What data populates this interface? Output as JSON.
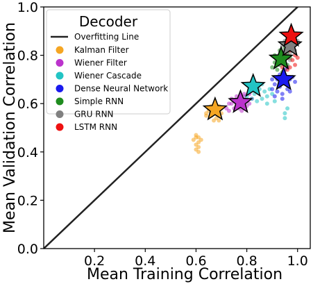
{
  "chart_data": {
    "type": "scatter",
    "xlabel": "Mean Training Correlation",
    "ylabel": "Mean Validation Correlation",
    "xlim": [
      0.0,
      1.05
    ],
    "ylim": [
      0.0,
      1.0
    ],
    "x_ticks": [
      "0.2",
      "0.4",
      "0.6",
      "0.8",
      "1.0"
    ],
    "x_tick_values": [
      0.2,
      0.4,
      0.6,
      0.8,
      1.0
    ],
    "y_ticks": [
      "0.0",
      "0.2",
      "0.4",
      "0.6",
      "0.8",
      "1.0"
    ],
    "y_tick_values": [
      0.0,
      0.2,
      0.4,
      0.6,
      0.8,
      1.0
    ],
    "grid": false,
    "legend": {
      "title": "Decoder",
      "placement": "top-left"
    },
    "reference_line": {
      "name": "Overfitting Line",
      "color": "#222222",
      "x": [
        0.0,
        1.05
      ],
      "y": [
        0.0,
        1.05
      ]
    },
    "series": [
      {
        "name": "Kalman Filter",
        "color": "#f5a623",
        "mean": [
          0.675,
          0.575
        ],
        "points": [
          [
            0.6,
            0.41
          ],
          [
            0.61,
            0.42
          ],
          [
            0.6,
            0.43
          ],
          [
            0.61,
            0.44
          ],
          [
            0.61,
            0.46
          ],
          [
            0.6,
            0.47
          ],
          [
            0.59,
            0.45
          ],
          [
            0.6,
            0.46
          ],
          [
            0.61,
            0.4
          ],
          [
            0.62,
            0.45
          ],
          [
            0.64,
            0.55
          ],
          [
            0.65,
            0.57
          ],
          [
            0.66,
            0.59
          ],
          [
            0.67,
            0.58
          ],
          [
            0.68,
            0.54
          ],
          [
            0.69,
            0.53
          ],
          [
            0.69,
            0.55
          ],
          [
            0.7,
            0.56
          ],
          [
            0.68,
            0.57
          ],
          [
            0.66,
            0.55
          ],
          [
            0.65,
            0.58
          ],
          [
            0.64,
            0.56
          ],
          [
            0.7,
            0.58
          ],
          [
            0.67,
            0.53
          ],
          [
            0.69,
            0.59
          ]
        ]
      },
      {
        "name": "Wiener Filter",
        "color": "#bb33cc",
        "mean": [
          0.775,
          0.605
        ],
        "points": [
          [
            0.72,
            0.58
          ],
          [
            0.73,
            0.57
          ],
          [
            0.74,
            0.6
          ],
          [
            0.75,
            0.61
          ],
          [
            0.76,
            0.59
          ],
          [
            0.77,
            0.62
          ],
          [
            0.78,
            0.6
          ],
          [
            0.79,
            0.63
          ],
          [
            0.8,
            0.61
          ],
          [
            0.81,
            0.6
          ],
          [
            0.75,
            0.58
          ],
          [
            0.78,
            0.57
          ],
          [
            0.79,
            0.64
          ],
          [
            0.82,
            0.62
          ],
          [
            0.73,
            0.6
          ],
          [
            0.76,
            0.63
          ],
          [
            0.8,
            0.59
          ],
          [
            0.77,
            0.58
          ],
          [
            0.74,
            0.62
          ],
          [
            0.81,
            0.64
          ]
        ]
      },
      {
        "name": "Wiener Cascade",
        "color": "#22c4c4",
        "mean": [
          0.825,
          0.672
        ],
        "points": [
          [
            0.8,
            0.63
          ],
          [
            0.81,
            0.65
          ],
          [
            0.82,
            0.66
          ],
          [
            0.83,
            0.64
          ],
          [
            0.84,
            0.68
          ],
          [
            0.85,
            0.66
          ],
          [
            0.86,
            0.62
          ],
          [
            0.79,
            0.61
          ],
          [
            0.88,
            0.63
          ],
          [
            0.87,
            0.65
          ],
          [
            0.9,
            0.64
          ],
          [
            0.91,
            0.61
          ],
          [
            0.84,
            0.61
          ],
          [
            0.86,
            0.68
          ],
          [
            0.89,
            0.66
          ],
          [
            0.95,
            0.56
          ],
          [
            0.96,
            0.58
          ],
          [
            0.95,
            0.54
          ],
          [
            0.82,
            0.62
          ],
          [
            0.88,
            0.6
          ]
        ]
      },
      {
        "name": "Dense Neural Network",
        "color": "#1a1aee",
        "mean": [
          0.945,
          0.7
        ],
        "points": [
          [
            0.9,
            0.66
          ],
          [
            0.91,
            0.68
          ],
          [
            0.92,
            0.7
          ],
          [
            0.93,
            0.67
          ],
          [
            0.94,
            0.69
          ],
          [
            0.95,
            0.72
          ],
          [
            0.96,
            0.68
          ],
          [
            0.97,
            0.7
          ],
          [
            0.92,
            0.65
          ],
          [
            0.94,
            0.64
          ],
          [
            0.96,
            0.66
          ],
          [
            0.95,
            0.74
          ],
          [
            0.98,
            0.71
          ],
          [
            0.93,
            0.72
          ],
          [
            0.91,
            0.63
          ],
          [
            0.97,
            0.65
          ],
          [
            0.99,
            0.69
          ],
          [
            0.9,
            0.7
          ],
          [
            0.94,
            0.62
          ],
          [
            0.96,
            0.75
          ]
        ]
      },
      {
        "name": "Simple RNN",
        "color": "#1f8c1f",
        "mean": [
          0.935,
          0.785
        ],
        "points": [
          [
            0.91,
            0.77
          ],
          [
            0.92,
            0.79
          ],
          [
            0.93,
            0.76
          ],
          [
            0.94,
            0.8
          ],
          [
            0.95,
            0.78
          ],
          [
            0.96,
            0.81
          ],
          [
            0.92,
            0.74
          ],
          [
            0.9,
            0.75
          ],
          [
            0.95,
            0.83
          ],
          [
            0.97,
            0.79
          ],
          [
            0.93,
            0.82
          ],
          [
            0.94,
            0.73
          ],
          [
            0.96,
            0.76
          ],
          [
            0.91,
            0.8
          ],
          [
            0.98,
            0.82
          ]
        ]
      },
      {
        "name": "GRU RNN",
        "color": "#808080",
        "mean": [
          0.97,
          0.84
        ],
        "points": [
          [
            0.95,
            0.82
          ],
          [
            0.96,
            0.84
          ],
          [
            0.97,
            0.86
          ],
          [
            0.98,
            0.83
          ],
          [
            0.99,
            0.85
          ],
          [
            0.96,
            0.8
          ],
          [
            0.97,
            0.81
          ],
          [
            0.95,
            0.86
          ],
          [
            0.98,
            0.88
          ],
          [
            0.99,
            0.82
          ],
          [
            0.94,
            0.84
          ],
          [
            0.97,
            0.78
          ],
          [
            1.0,
            0.86
          ]
        ]
      },
      {
        "name": "LSTM RNN",
        "color": "#ee1111",
        "mean": [
          0.975,
          0.88
        ],
        "points": [
          [
            0.94,
            0.78
          ],
          [
            0.95,
            0.8
          ],
          [
            0.96,
            0.79
          ],
          [
            0.97,
            0.82
          ],
          [
            0.98,
            0.84
          ],
          [
            0.99,
            0.8
          ],
          [
            0.95,
            0.76
          ],
          [
            0.97,
            0.75
          ],
          [
            0.98,
            0.78
          ],
          [
            0.96,
            0.74
          ],
          [
            0.99,
            0.76
          ],
          [
            1.0,
            0.79
          ],
          [
            0.94,
            0.75
          ],
          [
            0.97,
            0.88
          ],
          [
            0.98,
            0.9
          ]
        ]
      }
    ]
  }
}
